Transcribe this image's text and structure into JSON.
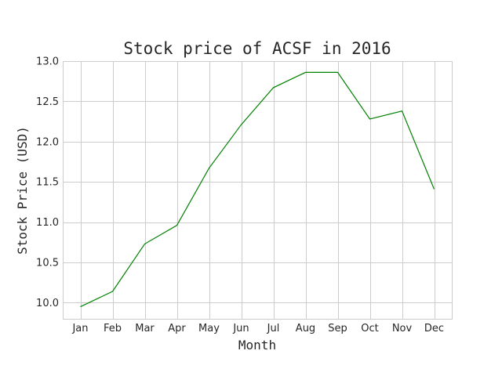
{
  "chart_data": {
    "type": "line",
    "title": "Stock price of ACSF in 2016",
    "xlabel": "Month",
    "ylabel": "Stock Price (USD)",
    "categories": [
      "Jan",
      "Feb",
      "Mar",
      "Apr",
      "May",
      "Jun",
      "Jul",
      "Aug",
      "Sep",
      "Oct",
      "Nov",
      "Dec"
    ],
    "series": [
      {
        "values": [
          9.95,
          10.14,
          10.73,
          10.96,
          11.67,
          12.21,
          12.67,
          12.86,
          12.86,
          12.28,
          12.38,
          11.41
        ],
        "color": "#008000"
      }
    ],
    "ylim": [
      9.8,
      13.0
    ],
    "yticks": [
      "10.0",
      "10.5",
      "11.0",
      "11.5",
      "12.0",
      "12.5",
      "13.0"
    ],
    "grid": true,
    "legend": "none"
  }
}
